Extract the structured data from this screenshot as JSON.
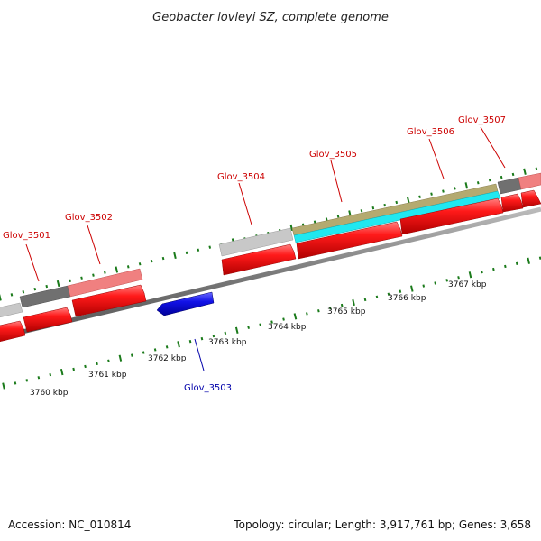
{
  "header": {
    "title": "Geobacter lovleyi SZ, complete genome"
  },
  "footer": {
    "accession": "Accession: NC_010814",
    "summary": "Topology: circular; Length: 3,917,761 bp; Genes: 3,658"
  },
  "ruler": {
    "labels": [
      "3760 kbp",
      "3761 kbp",
      "3762 kbp",
      "3763 kbp",
      "3764 kbp",
      "3765 kbp",
      "3766 kbp",
      "3767 kbp"
    ]
  },
  "genes": [
    {
      "name": "Glov_3501",
      "strand": "forward"
    },
    {
      "name": "Glov_3502",
      "strand": "forward"
    },
    {
      "name": "Glov_3503",
      "strand": "reverse"
    },
    {
      "name": "Glov_3504",
      "strand": "forward"
    },
    {
      "name": "Glov_3505",
      "strand": "forward"
    },
    {
      "name": "Glov_3506",
      "strand": "forward"
    },
    {
      "name": "Glov_3507",
      "strand": "forward"
    }
  ],
  "colors": {
    "forward_cds": "#ff1010",
    "reverse_cds": "#1010e0",
    "backbone": "#888888",
    "tick": "#1a7a1a",
    "label_forward": "#cc0000",
    "label_reverse": "#0000aa",
    "feature_light_gray": "#c8c8c8",
    "feature_dark_gray": "#707070",
    "feature_pink": "#f08080",
    "feature_tan": "#b4aa70",
    "feature_cyan": "#20e8f0"
  }
}
